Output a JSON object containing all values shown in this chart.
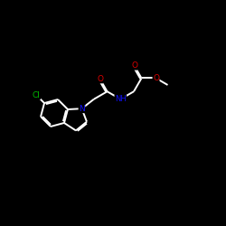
{
  "bg_color": "#000000",
  "bond_color": "#ffffff",
  "N_color": "#1010ff",
  "O_color": "#dd0000",
  "Cl_color": "#00bb00",
  "lw": 1.4,
  "fig_size": [
    2.5,
    2.5
  ],
  "dpi": 100,
  "xlim": [
    0,
    10
  ],
  "ylim": [
    0,
    10
  ]
}
